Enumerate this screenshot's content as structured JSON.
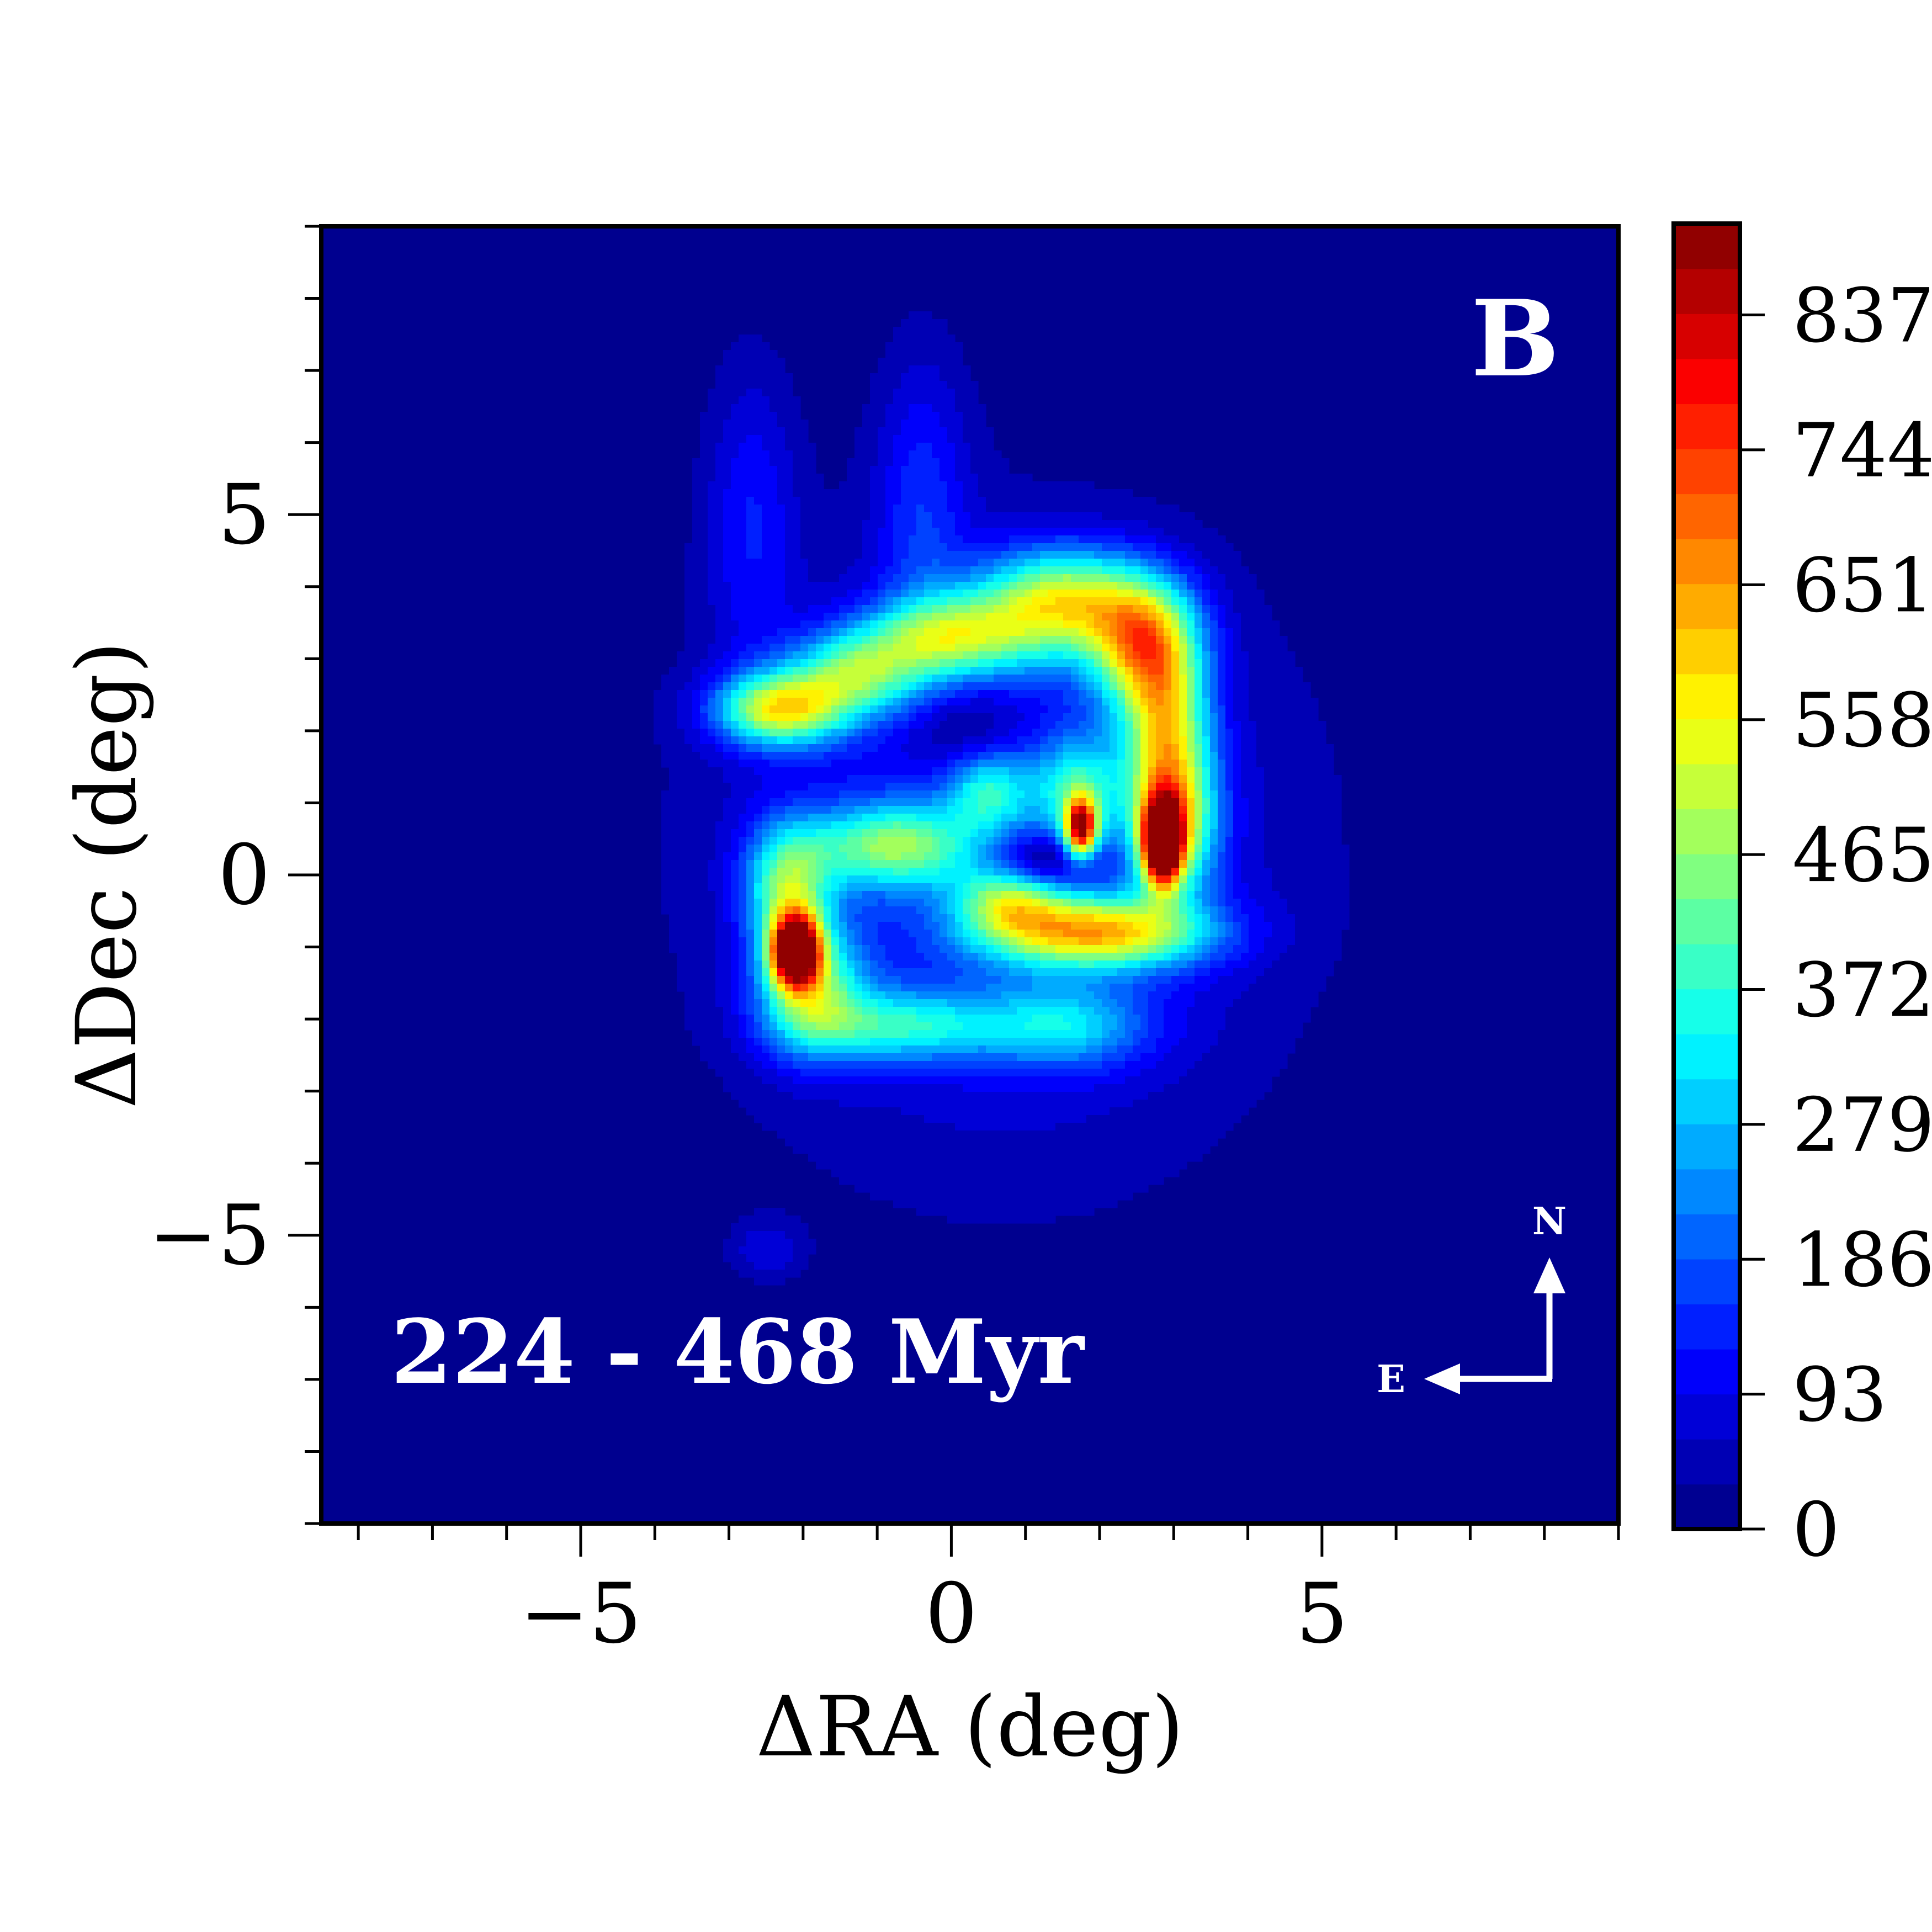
{
  "chart_data": {
    "type": "heatmap",
    "panel_label": "B",
    "annotation": "224 - 468 Myr",
    "compass": {
      "north": "N",
      "east": "E"
    },
    "xlabel": "ΔRA (deg)",
    "ylabel": "ΔDec (deg)",
    "xlim": [
      -8.5,
      9.0
    ],
    "ylim": [
      -9.0,
      9.0
    ],
    "x_ticks": [
      -5,
      0,
      5
    ],
    "x_tick_labels": [
      "−5",
      "0",
      "5"
    ],
    "y_ticks": [
      5,
      0,
      -5
    ],
    "y_tick_labels": [
      "5",
      "0",
      "−5"
    ],
    "colorbar": {
      "min": 0,
      "max": 900,
      "ticks": [
        0,
        93,
        186,
        279,
        372,
        465,
        558,
        651,
        744,
        837
      ],
      "tick_labels": [
        "0",
        "93",
        "186",
        "279",
        "372",
        "465",
        "558",
        "651",
        "744",
        "837"
      ],
      "levels": 29,
      "colormap": "jet"
    },
    "background_color": "#00008f",
    "density_features": [
      {
        "feature": "overall disk",
        "x": 0.7,
        "y": 0.3,
        "sx": 2.6,
        "sy": 2.9,
        "peak": 150
      },
      {
        "feature": "northern spur",
        "x": -2.7,
        "y": 5.0,
        "sx": 0.45,
        "sy": 1.5,
        "peak": 110
      },
      {
        "feature": "northern spur",
        "x": -0.4,
        "y": 5.2,
        "sx": 0.45,
        "sy": 1.5,
        "peak": 120
      },
      {
        "feature": "arm",
        "x": -2.3,
        "y": 2.3,
        "sx": 0.6,
        "sy": 0.35,
        "peak": 500
      },
      {
        "feature": "arm",
        "x": -1.3,
        "y": 2.8,
        "sx": 0.6,
        "sy": 0.4,
        "peak": 350
      },
      {
        "feature": "arm",
        "x": 0.0,
        "y": 3.3,
        "sx": 0.8,
        "sy": 0.4,
        "peak": 380
      },
      {
        "feature": "arm",
        "x": 1.5,
        "y": 3.8,
        "sx": 0.8,
        "sy": 0.5,
        "peak": 470
      },
      {
        "feature": "arm",
        "x": 2.6,
        "y": 3.2,
        "sx": 0.5,
        "sy": 0.6,
        "peak": 500
      },
      {
        "feature": "arm",
        "x": 2.9,
        "y": 2.0,
        "sx": 0.4,
        "sy": 0.8,
        "peak": 420
      },
      {
        "feature": "arm",
        "x": 3.0,
        "y": 0.7,
        "sx": 0.4,
        "sy": 0.7,
        "peak": 420
      },
      {
        "feature": "arm",
        "x": 2.0,
        "y": -0.8,
        "sx": 1.0,
        "sy": 0.35,
        "peak": 520
      },
      {
        "feature": "arm",
        "x": 0.8,
        "y": -0.3,
        "sx": 0.5,
        "sy": 0.4,
        "peak": 350
      },
      {
        "feature": "arm",
        "x": -0.8,
        "y": 0.4,
        "sx": 0.8,
        "sy": 0.4,
        "peak": 360
      },
      {
        "feature": "arm",
        "x": -2.2,
        "y": -0.2,
        "sx": 0.4,
        "sy": 0.6,
        "peak": 380
      },
      {
        "feature": "arm",
        "x": -1.9,
        "y": -1.6,
        "sx": 0.5,
        "sy": 0.6,
        "peak": 380
      },
      {
        "feature": "arm",
        "x": -0.7,
        "y": -2.1,
        "sx": 0.9,
        "sy": 0.35,
        "peak": 280
      },
      {
        "feature": "arm",
        "x": 1.5,
        "y": -2.1,
        "sx": 0.8,
        "sy": 0.4,
        "peak": 230
      },
      {
        "feature": "arm",
        "x": 0.5,
        "y": 1.2,
        "sx": 0.4,
        "sy": 0.4,
        "peak": 260
      },
      {
        "feature": "arm",
        "x": 1.7,
        "y": 1.2,
        "sx": 0.4,
        "sy": 0.5,
        "peak": 260
      },
      {
        "feature": "hot spot",
        "x": -2.1,
        "y": -1.05,
        "sx": 0.22,
        "sy": 0.33,
        "peak": 900
      },
      {
        "feature": "hot spot",
        "x": 1.75,
        "y": 0.65,
        "sx": 0.15,
        "sy": 0.28,
        "peak": 700
      },
      {
        "feature": "hot spot",
        "x": 2.85,
        "y": 0.45,
        "sx": 0.18,
        "sy": 0.4,
        "peak": 900
      },
      {
        "feature": "void",
        "x": 1.1,
        "y": 0.15,
        "sx": 0.55,
        "sy": 0.3,
        "peak": -250
      },
      {
        "feature": "void",
        "x": 0.2,
        "y": 1.9,
        "sx": 0.6,
        "sy": 0.5,
        "peak": -120
      },
      {
        "feature": "outer patch",
        "x": -2.5,
        "y": -5.2,
        "sx": 0.35,
        "sy": 0.3,
        "peak": 80
      }
    ]
  }
}
